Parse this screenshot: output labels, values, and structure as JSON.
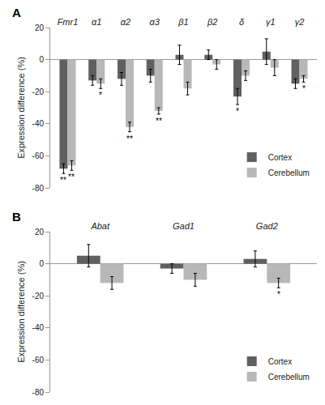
{
  "chart_data": [
    {
      "type": "bar",
      "title": "A",
      "categories": [
        "Fmr1",
        "α1",
        "α2",
        "α3",
        "β1",
        "β2",
        "δ",
        "γ1",
        "γ2"
      ],
      "series": [
        {
          "name": "Cortex",
          "color": "#606060",
          "values": [
            -68,
            -13,
            -12,
            -10,
            3,
            3,
            -23,
            5,
            -15
          ],
          "errors": [
            3,
            3,
            4,
            4,
            6,
            3,
            5,
            8,
            3
          ]
        },
        {
          "name": "Cerebellum",
          "color": "#b8b8b8",
          "values": [
            -66,
            -15,
            -42,
            -32,
            -18,
            -3,
            -10,
            -5,
            -12
          ],
          "errors": [
            3,
            3,
            3,
            2,
            4,
            3,
            3,
            5,
            2
          ]
        }
      ],
      "annotations": [
        {
          "text": "**",
          "category": "Fmr1",
          "series": "Cortex"
        },
        {
          "text": "*",
          "category": "δ",
          "series": "Cortex"
        },
        {
          "text": "**",
          "category": "Fmr1",
          "series": "Cerebellum"
        },
        {
          "text": "*",
          "category": "α1",
          "series": "Cerebellum"
        },
        {
          "text": "**",
          "category": "α2",
          "series": "Cerebellum"
        },
        {
          "text": "**",
          "category": "α3",
          "series": "Cerebellum"
        },
        {
          "text": "*",
          "category": "γ2",
          "series": "Cerebellum"
        }
      ],
      "ylabel": "Expression difference (%)",
      "ylim": [
        -80,
        20
      ],
      "yticks": [
        -80,
        -60,
        -40,
        -20,
        0,
        20
      ],
      "grid": false,
      "legend": "lower right"
    },
    {
      "type": "bar",
      "title": "B",
      "categories": [
        "Abat",
        "Gad1",
        "Gad2"
      ],
      "series": [
        {
          "name": "Cortex",
          "color": "#606060",
          "values": [
            5,
            -3,
            3
          ],
          "errors": [
            7,
            3,
            5
          ]
        },
        {
          "name": "Cerebellum",
          "color": "#b8b8b8",
          "values": [
            -12,
            -10,
            -12
          ],
          "errors": [
            4,
            4,
            3
          ]
        }
      ],
      "annotations": [
        {
          "text": "*",
          "category": "Gad2",
          "series": "Cerebellum"
        }
      ],
      "ylabel": "Expression difference (%)",
      "ylim": [
        -80,
        20
      ],
      "yticks": [
        -80,
        -60,
        -40,
        -20,
        0,
        20
      ],
      "grid": false,
      "legend": "lower right"
    }
  ]
}
